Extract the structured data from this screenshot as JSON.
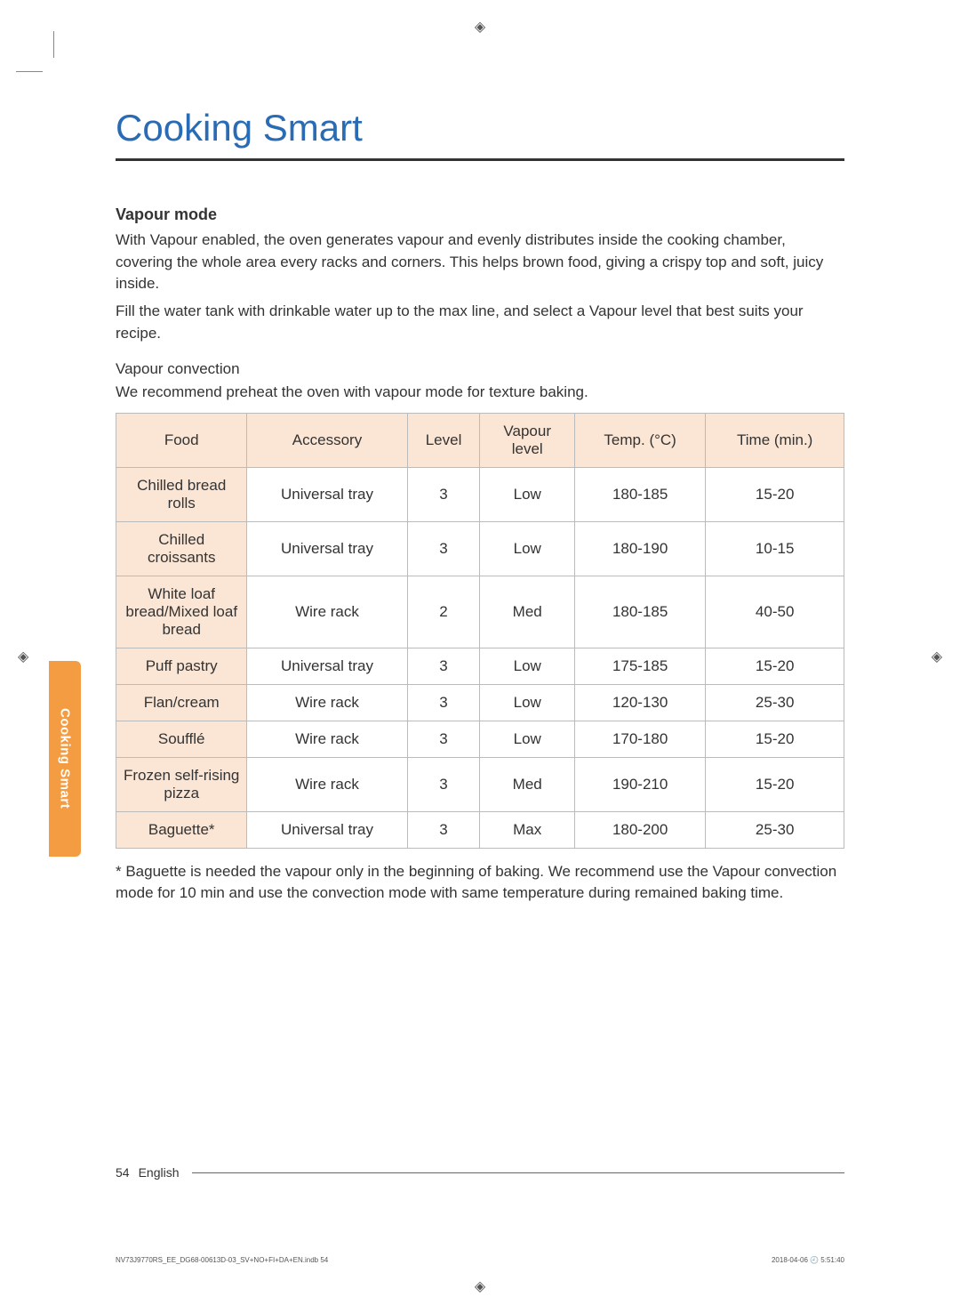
{
  "page": {
    "title": "Cooking Smart",
    "side_tab": "Cooking Smart",
    "footer_page": "54",
    "footer_lang": "English",
    "print_file": "NV73J9770RS_EE_DG68-00613D-03_SV+NO+FI+DA+EN.indb   54",
    "print_time": "2018-04-06   🕘 5:51:40"
  },
  "section": {
    "heading": "Vapour mode",
    "para1": "With Vapour enabled, the oven generates vapour and evenly distributes inside the cooking chamber, covering the whole area every racks and corners. This helps brown food, giving a crispy top and soft, juicy inside.",
    "para2": "Fill the water tank with drinkable water up to the max line, and select a Vapour level that best suits your recipe.",
    "subheading": "Vapour convection",
    "subpara": "We recommend preheat the oven with vapour mode for texture baking.",
    "footnote": "* Baguette is needed the vapour only in the beginning of baking. We recommend use the Vapour convection mode for 10 min and use the convection mode with same temperature during remained baking time."
  },
  "table": {
    "headers": {
      "food": "Food",
      "accessory": "Accessory",
      "level": "Level",
      "vapour": "Vapour level",
      "temp": "Temp. (°C)",
      "time": "Time (min.)"
    },
    "col_widths": [
      "18%",
      "22%",
      "10%",
      "13%",
      "18%",
      "19%"
    ],
    "rows": [
      {
        "food": "Chilled bread rolls",
        "accessory": "Universal tray",
        "level": "3",
        "vapour": "Low",
        "temp": "180-185",
        "time": "15-20"
      },
      {
        "food": "Chilled croissants",
        "accessory": "Universal tray",
        "level": "3",
        "vapour": "Low",
        "temp": "180-190",
        "time": "10-15"
      },
      {
        "food": "White loaf bread/Mixed loaf bread",
        "accessory": "Wire rack",
        "level": "2",
        "vapour": "Med",
        "temp": "180-185",
        "time": "40-50"
      },
      {
        "food": "Puff pastry",
        "accessory": "Universal tray",
        "level": "3",
        "vapour": "Low",
        "temp": "175-185",
        "time": "15-20"
      },
      {
        "food": "Flan/cream",
        "accessory": "Wire rack",
        "level": "3",
        "vapour": "Low",
        "temp": "120-130",
        "time": "25-30"
      },
      {
        "food": "Soufflé",
        "accessory": "Wire rack",
        "level": "3",
        "vapour": "Low",
        "temp": "170-180",
        "time": "15-20"
      },
      {
        "food": "Frozen self-rising pizza",
        "accessory": "Wire rack",
        "level": "3",
        "vapour": "Med",
        "temp": "190-210",
        "time": "15-20"
      },
      {
        "food": "Baguette*",
        "accessory": "Universal tray",
        "level": "3",
        "vapour": "Max",
        "temp": "180-200",
        "time": "25-30"
      }
    ]
  },
  "colors": {
    "title": "#2a6bb5",
    "header_bg": "#fbe6d5",
    "tab_bg": "#f39c42",
    "text": "#333333",
    "border": "#bbbbbb"
  }
}
